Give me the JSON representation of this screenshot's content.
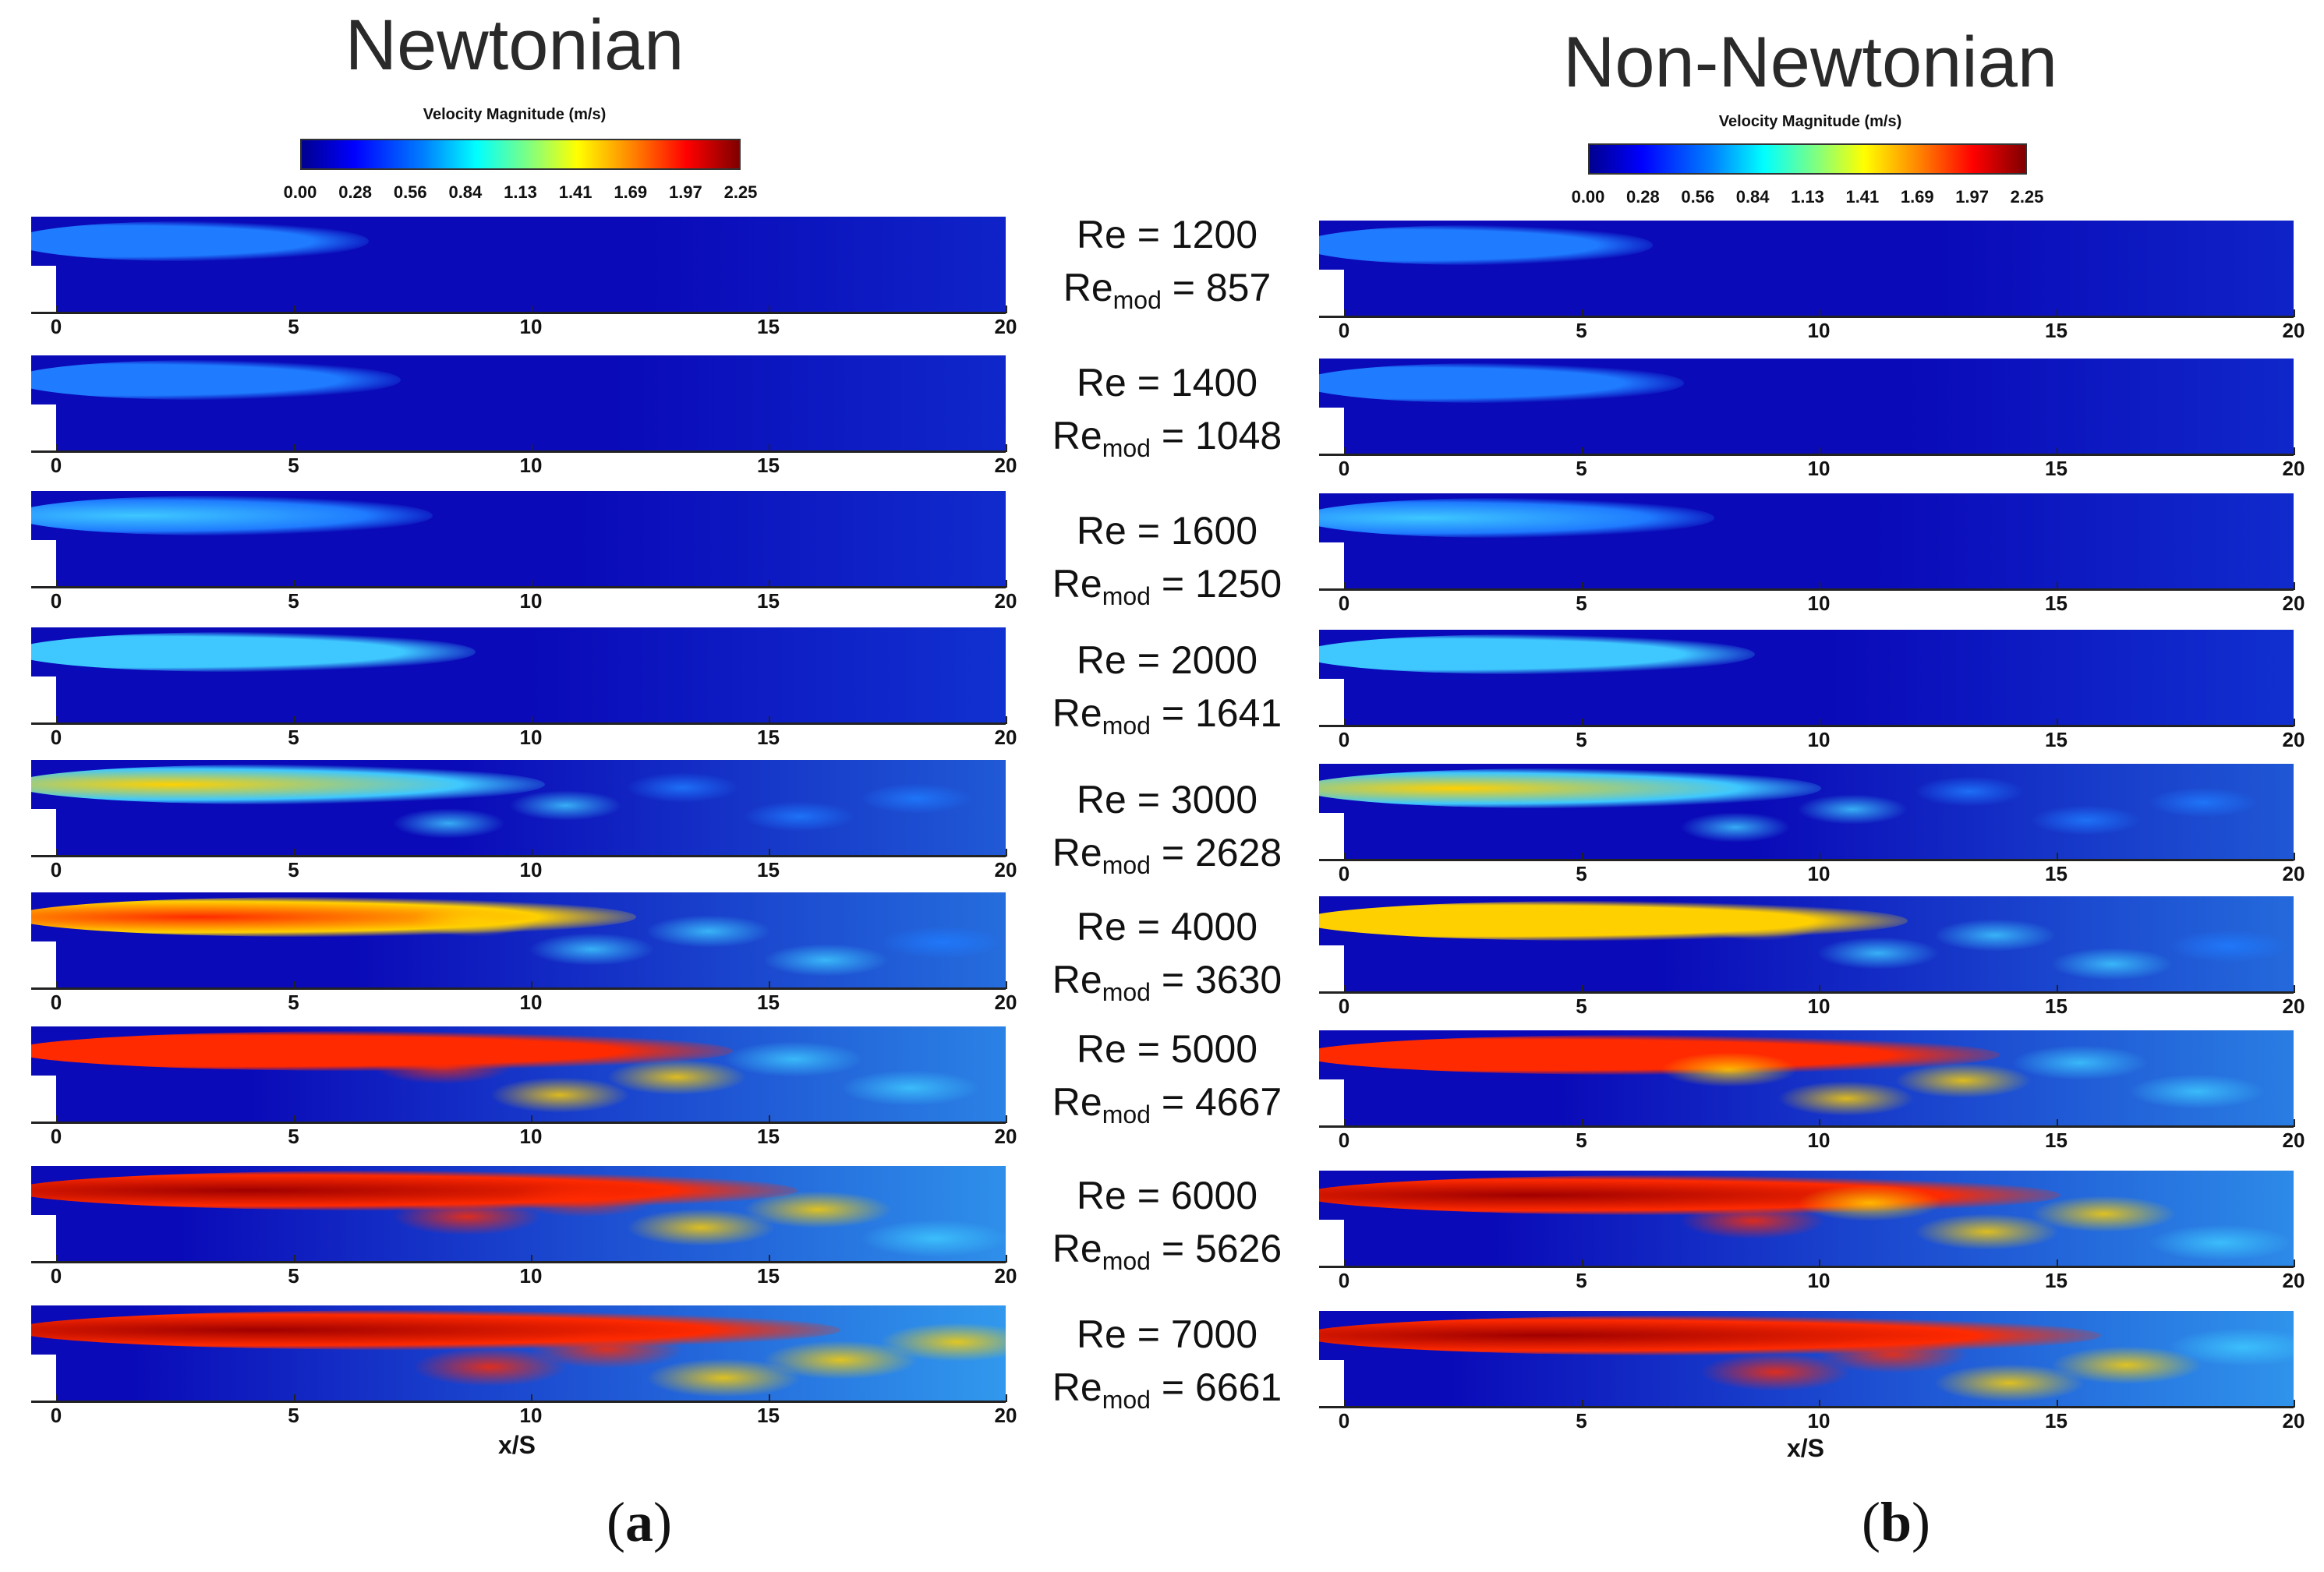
{
  "left": {
    "title": "Newtonian",
    "colorbar_label": "Velocity Magnitude (m/s)",
    "sublabel_open": "(",
    "sublabel_letter": "a",
    "sublabel_close": ")",
    "xlabel": "x/S"
  },
  "right": {
    "title": "Non-Newtonian",
    "colorbar_label": "Velocity Magnitude (m/s)",
    "sublabel_open": "(",
    "sublabel_letter": "b",
    "sublabel_close": ")",
    "xlabel": "x/S"
  },
  "colorbar_ticks": [
    "0.00",
    "0.28",
    "0.56",
    "0.84",
    "1.13",
    "1.41",
    "1.69",
    "1.97",
    "2.25"
  ],
  "colorbar_range": [
    0.0,
    2.25
  ],
  "x_ticks": [
    "0",
    "5",
    "10",
    "15",
    "20"
  ],
  "x_range": [
    0,
    20
  ],
  "cases": [
    {
      "re_label": "Re = 1200",
      "remod_prefix": "Re",
      "remod_sub": "mod",
      "remod_value": " = 857",
      "intensity": 0.12
    },
    {
      "re_label": "Re = 1400",
      "remod_prefix": "Re",
      "remod_sub": "mod",
      "remod_value": " = 1048",
      "intensity": 0.18
    },
    {
      "re_label": "Re = 1600",
      "remod_prefix": "Re",
      "remod_sub": "mod",
      "remod_value": " = 1250",
      "intensity": 0.24
    },
    {
      "re_label": "Re = 2000",
      "remod_prefix": "Re",
      "remod_sub": "mod",
      "remod_value": " = 1641",
      "intensity": 0.32
    },
    {
      "re_label": "Re = 3000",
      "remod_prefix": "Re",
      "remod_sub": "mod",
      "remod_value": " = 2628",
      "intensity": 0.45
    },
    {
      "re_label": "Re = 4000",
      "remod_prefix": "Re",
      "remod_sub": "mod",
      "remod_value": " = 3630",
      "intensity": 0.62
    },
    {
      "re_label": "Re = 5000",
      "remod_prefix": "Re",
      "remod_sub": "mod",
      "remod_value": " = 4667",
      "intensity": 0.8
    },
    {
      "re_label": "Re = 6000",
      "remod_prefix": "Re",
      "remod_sub": "mod",
      "remod_value": " = 5626",
      "intensity": 0.92
    },
    {
      "re_label": "Re = 7000",
      "remod_prefix": "Re",
      "remod_sub": "mod",
      "remod_value": " = 6661",
      "intensity": 1.0
    }
  ],
  "colors": {
    "background": "#0a0ab8",
    "jet_low": "#1f7bff",
    "jet_mid": "#3ec8ff",
    "jet_high_1": "#ffd000",
    "jet_high_2": "#ff2a00",
    "jet_max": "#a00000"
  }
}
